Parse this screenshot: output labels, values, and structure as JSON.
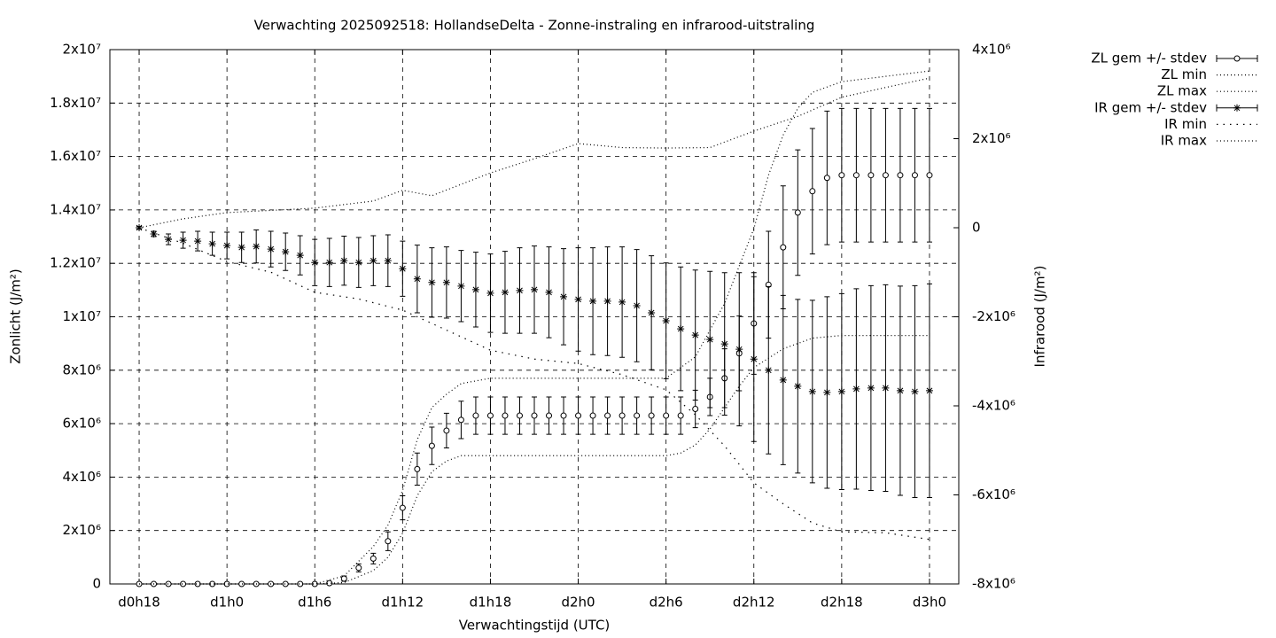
{
  "chart_data": {
    "type": "errorbar-line",
    "title": "Verwachting 2025092518: HollandseDelta - Zonne-instraling en infrarood-uitstraling",
    "xlabel": "Verwachtingstijd (UTC)",
    "ylabel": "Zonlicht (J/m²)",
    "y2label": "Infrarood (J/m²)",
    "xlim": [
      16,
      74
    ],
    "xticks": [
      {
        "value": 18,
        "label": "d0h18"
      },
      {
        "value": 24,
        "label": "d1h0"
      },
      {
        "value": 30,
        "label": "d1h6"
      },
      {
        "value": 36,
        "label": "d1h12"
      },
      {
        "value": 42,
        "label": "d1h18"
      },
      {
        "value": 48,
        "label": "d2h0"
      },
      {
        "value": 54,
        "label": "d2h6"
      },
      {
        "value": 60,
        "label": "d2h12"
      },
      {
        "value": 66,
        "label": "d2h18"
      },
      {
        "value": 72,
        "label": "d3h0"
      }
    ],
    "ylim": [
      0,
      20000000.0
    ],
    "yticks": [
      0,
      {
        "value": 2000000.0,
        "label": "2x10⁶"
      },
      {
        "value": 4000000.0,
        "label": "4x10⁶"
      },
      {
        "value": 6000000.0,
        "label": "6x10⁶"
      },
      {
        "value": 8000000.0,
        "label": "8x10⁶"
      },
      {
        "value": 10000000.0,
        "label": "1x10⁷"
      },
      {
        "value": 12000000.0,
        "label": "1.2x10⁷"
      },
      {
        "value": 14000000.0,
        "label": "1.4x10⁷"
      },
      {
        "value": 16000000.0,
        "label": "1.6x10⁷"
      },
      {
        "value": 18000000.0,
        "label": "1.8x10⁷"
      },
      {
        "value": 20000000.0,
        "label": "2x10⁷"
      }
    ],
    "y2lim": [
      -8000000.0,
      4000000.0
    ],
    "y2ticks": [
      {
        "value": -8000000.0,
        "label": "-8x10⁶"
      },
      {
        "value": -6000000.0,
        "label": "-6x10⁶"
      },
      {
        "value": -4000000.0,
        "label": "-4x10⁶"
      },
      {
        "value": -2000000.0,
        "label": "-2x10⁶"
      },
      0,
      {
        "value": 2000000.0,
        "label": "2x10⁶"
      },
      {
        "value": 4000000.0,
        "label": "4x10⁶"
      }
    ],
    "grid": true,
    "legend": "outside-top-right",
    "x": [
      18,
      19,
      20,
      21,
      22,
      23,
      24,
      25,
      26,
      27,
      28,
      29,
      30,
      31,
      32,
      33,
      34,
      35,
      36,
      37,
      38,
      39,
      40,
      41,
      42,
      43,
      44,
      45,
      46,
      47,
      48,
      49,
      50,
      51,
      52,
      53,
      54,
      55,
      56,
      57,
      58,
      59,
      60,
      61,
      62,
      63,
      64,
      65,
      66,
      67,
      68,
      69,
      70,
      71,
      72
    ],
    "series": [
      {
        "name": "ZL gem +/- stdev",
        "color": "#000000",
        "style": "errorbars",
        "marker": "circle",
        "axis": "y",
        "values": [
          0,
          0,
          0,
          0,
          0,
          0,
          0,
          0,
          0,
          0,
          0,
          0,
          0,
          30000.0,
          200000.0,
          600000.0,
          950000.0,
          1600000.0,
          2850000.0,
          4300000.0,
          5170000.0,
          5740000.0,
          6140000.0,
          6300000.0,
          6300000.0,
          6300000.0,
          6300000.0,
          6300000.0,
          6300000.0,
          6300000.0,
          6300000.0,
          6300000.0,
          6300000.0,
          6300000.0,
          6300000.0,
          6300000.0,
          6300000.0,
          6300000.0,
          6550000.0,
          7000000.0,
          7700000.0,
          8630000.0,
          9750000.0,
          11200000.0,
          12600000.0,
          13900000.0,
          14700000.0,
          15200000.0,
          15300000.0,
          15300000.0,
          15300000.0,
          15300000.0,
          15300000.0,
          15300000.0,
          15300000.0
        ],
        "errors": [
          0,
          0,
          0,
          0,
          0,
          0,
          0,
          0,
          0,
          0,
          0,
          0,
          0,
          0,
          100000.0,
          150000.0,
          200000.0,
          350000.0,
          450000.0,
          600000.0,
          700000.0,
          650000.0,
          700000.0,
          700000.0,
          700000.0,
          700000.0,
          700000.0,
          700000.0,
          700000.0,
          700000.0,
          700000.0,
          700000.0,
          700000.0,
          700000.0,
          700000.0,
          700000.0,
          700000.0,
          700000.0,
          700000.0,
          700000.0,
          1100000.0,
          1400000.0,
          1900000.0,
          2000000.0,
          2300000.0,
          2350000.0,
          2350000.0,
          2500000.0,
          2500000.0,
          2500000.0,
          2500000.0,
          2500000.0,
          2500000.0,
          2500000.0,
          2500000.0
        ]
      },
      {
        "name": "ZL min",
        "color": "#000000",
        "style": "dotted",
        "axis": "y",
        "x": [
          18,
          24,
          30,
          32,
          34,
          35,
          36,
          37,
          38,
          39,
          40,
          48,
          54,
          55,
          56,
          57,
          58,
          59,
          60,
          62,
          64,
          66,
          72
        ],
        "values": [
          0,
          0,
          0,
          50000.0,
          500000.0,
          1000000.0,
          1900000.0,
          3300000.0,
          4200000.0,
          4600000.0,
          4800000.0,
          4800000.0,
          4800000.0,
          4900000.0,
          5200000.0,
          5800000.0,
          6600000.0,
          7400000.0,
          8100000.0,
          8800000.0,
          9200000.0,
          9300000.0,
          9300000.0
        ]
      },
      {
        "name": "ZL max",
        "color": "#000000",
        "style": "dotted",
        "axis": "y",
        "x": [
          18,
          30,
          32,
          34,
          35,
          36,
          37,
          38,
          39,
          40,
          42,
          48,
          54,
          56,
          58,
          60,
          61,
          62,
          63,
          64,
          66,
          72
        ],
        "values": [
          0,
          0,
          300000.0,
          1400000.0,
          2200000.0,
          3500000.0,
          5400000.0,
          6600000.0,
          7100000.0,
          7500000.0,
          7700000.0,
          7700000.0,
          7700000.0,
          8500000.0,
          10500000.0,
          13300000.0,
          15300000.0,
          16800000.0,
          17800000.0,
          18400000.0,
          18800000.0,
          19200000.0
        ]
      },
      {
        "name": "IR gem +/- stdev",
        "color": "#000000",
        "style": "errorbars",
        "marker": "asterisk",
        "axis": "y2",
        "values": [
          0,
          -140000.0,
          -260000.0,
          -280000.0,
          -300000.0,
          -360000.0,
          -400000.0,
          -440000.0,
          -420000.0,
          -480000.0,
          -540000.0,
          -620000.0,
          -780000.0,
          -780000.0,
          -740000.0,
          -780000.0,
          -740000.0,
          -740000.0,
          -920000.0,
          -1150000.0,
          -1230000.0,
          -1230000.0,
          -1310000.0,
          -1390000.0,
          -1470000.0,
          -1450000.0,
          -1410000.0,
          -1390000.0,
          -1450000.0,
          -1550000.0,
          -1610000.0,
          -1650000.0,
          -1650000.0,
          -1670000.0,
          -1750000.0,
          -1910000.0,
          -2090000.0,
          -2270000.0,
          -2410000.0,
          -2510000.0,
          -2610000.0,
          -2730000.0,
          -2950000.0,
          -3200000.0,
          -3420000.0,
          -3560000.0,
          -3680000.0,
          -3700000.0,
          -3680000.0,
          -3620000.0,
          -3600000.0,
          -3600000.0,
          -3660000.0,
          -3680000.0,
          -3660000.0
        ],
        "errors": [
          30000.0,
          60000.0,
          120000.0,
          180000.0,
          220000.0,
          260000.0,
          300000.0,
          340000.0,
          370000.0,
          400000.0,
          420000.0,
          440000.0,
          520000.0,
          540000.0,
          550000.0,
          560000.0,
          560000.0,
          580000.0,
          620000.0,
          760000.0,
          780000.0,
          800000.0,
          800000.0,
          840000.0,
          880000.0,
          920000.0,
          960000.0,
          980000.0,
          1020000.0,
          1080000.0,
          1160000.0,
          1200000.0,
          1220000.0,
          1240000.0,
          1260000.0,
          1280000.0,
          1300000.0,
          1390000.0,
          1460000.0,
          1530000.0,
          1600000.0,
          1720000.0,
          1850000.0,
          1880000.0,
          1900000.0,
          1950000.0,
          2050000.0,
          2150000.0,
          2200000.0,
          2250000.0,
          2300000.0,
          2320000.0,
          2350000.0,
          2380000.0,
          2400000.0
        ]
      },
      {
        "name": "IR min",
        "color": "#000000",
        "style": "dotted-coarse",
        "axis": "y2",
        "x": [
          18,
          21,
          24,
          27,
          30,
          33,
          36,
          39,
          42,
          45,
          48,
          51,
          54,
          56,
          58,
          60,
          62,
          64,
          66,
          69,
          72
        ],
        "values": [
          0,
          -350000.0,
          -760000.0,
          -1000000.0,
          -1450000.0,
          -1600000.0,
          -1850000.0,
          -2300000.0,
          -2750000.0,
          -2950000.0,
          -3050000.0,
          -3300000.0,
          -3640000.0,
          -4200000.0,
          -4900000.0,
          -5730000.0,
          -6200000.0,
          -6630000.0,
          -6830000.0,
          -6850000.0,
          -7000000.0
        ]
      },
      {
        "name": "IR max",
        "color": "#000000",
        "style": "dotted",
        "axis": "y2",
        "x": [
          18,
          21,
          24,
          30,
          34,
          36,
          38,
          42,
          45,
          48,
          51,
          54,
          57,
          60,
          63,
          66,
          69,
          72
        ],
        "values": [
          0,
          200000.0,
          340000.0,
          440000.0,
          600000.0,
          840000.0,
          720000.0,
          1230000.0,
          1550000.0,
          1890000.0,
          1800000.0,
          1790000.0,
          1800000.0,
          2170000.0,
          2500000.0,
          2930000.0,
          3150000.0,
          3360000.0
        ]
      }
    ]
  }
}
